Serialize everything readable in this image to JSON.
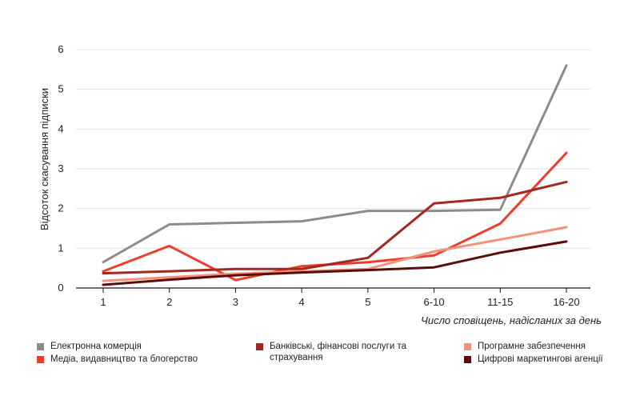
{
  "chart_data": {
    "type": "line",
    "title": "",
    "xlabel": "Число сповіщень, надісланих за день",
    "ylabel": "Відсоток скасування підписки",
    "categories": [
      "1",
      "2",
      "3",
      "4",
      "5",
      "6-10",
      "11-15",
      "16-20"
    ],
    "ylim": [
      0,
      6
    ],
    "yticks": [
      "0",
      "1",
      "2",
      "3",
      "4",
      "5",
      "6"
    ],
    "grid": true,
    "legend_position": "bottom",
    "series": [
      {
        "name": "Електронна комерція",
        "color": "#8c8c8c",
        "values": [
          0.65,
          1.6,
          1.64,
          1.68,
          1.94,
          1.94,
          1.97,
          5.6
        ]
      },
      {
        "name": "Медіа, видавництво та блогерство",
        "color": "#ee3d2a",
        "values": [
          0.42,
          1.06,
          0.2,
          0.55,
          0.65,
          0.82,
          1.62,
          3.4
        ]
      },
      {
        "name": "Банківські, фінансові послуги та страхування",
        "color": "#a52722",
        "values": [
          0.37,
          0.42,
          0.48,
          0.48,
          0.76,
          2.13,
          2.27,
          2.67
        ]
      },
      {
        "name": "Програмне забезпечення",
        "color": "#f5917a",
        "values": [
          0.18,
          0.27,
          0.36,
          0.42,
          0.48,
          0.92,
          1.22,
          1.53
        ]
      },
      {
        "name": "Цифрові маркетингові агенції",
        "color": "#5a0e0c",
        "values": [
          0.08,
          0.21,
          0.32,
          0.39,
          0.45,
          0.52,
          0.89,
          1.17
        ]
      }
    ]
  }
}
